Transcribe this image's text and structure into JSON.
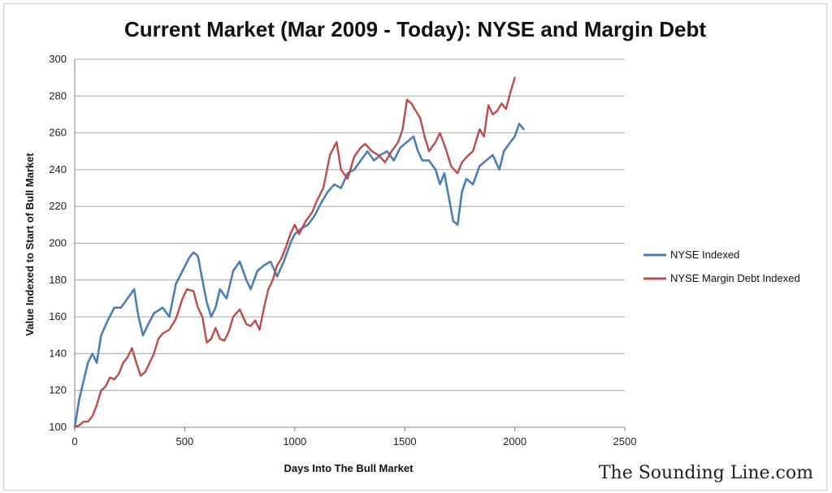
{
  "chart_data": {
    "type": "line",
    "title": "Current Market (Mar 2009 - Today): NYSE and Margin Debt",
    "xlabel": "Days Into The Bull Market",
    "ylabel": "Value Indexed to Start of Bull Market",
    "xlim": [
      0,
      2500
    ],
    "ylim": [
      100,
      300
    ],
    "xticks": [
      0,
      500,
      1000,
      1500,
      2000,
      2500
    ],
    "yticks": [
      100,
      120,
      140,
      160,
      180,
      200,
      220,
      240,
      260,
      280,
      300
    ],
    "grid": "horizontal",
    "legend_position": "right",
    "series": [
      {
        "name": "NYSE Indexed",
        "color": "#4a7ebb",
        "x": [
          0,
          20,
          40,
          60,
          80,
          100,
          120,
          150,
          180,
          210,
          240,
          270,
          290,
          310,
          330,
          360,
          400,
          430,
          460,
          490,
          520,
          540,
          560,
          580,
          600,
          620,
          640,
          660,
          690,
          720,
          750,
          780,
          800,
          830,
          860,
          890,
          920,
          950,
          980,
          1000,
          1030,
          1060,
          1090,
          1120,
          1150,
          1180,
          1210,
          1240,
          1270,
          1300,
          1330,
          1360,
          1390,
          1420,
          1450,
          1480,
          1510,
          1540,
          1560,
          1580,
          1610,
          1640,
          1660,
          1680,
          1700,
          1720,
          1740,
          1760,
          1780,
          1810,
          1840,
          1870,
          1900,
          1930,
          1950,
          1980,
          2000,
          2020,
          2040
        ],
        "values": [
          100,
          115,
          125,
          135,
          140,
          135,
          150,
          158,
          165,
          165,
          170,
          175,
          160,
          150,
          155,
          162,
          165,
          160,
          178,
          185,
          192,
          195,
          193,
          180,
          168,
          160,
          165,
          175,
          170,
          185,
          190,
          180,
          175,
          185,
          188,
          190,
          182,
          190,
          200,
          205,
          208,
          210,
          215,
          222,
          228,
          232,
          230,
          238,
          240,
          245,
          250,
          245,
          248,
          250,
          245,
          252,
          255,
          258,
          250,
          245,
          245,
          240,
          232,
          238,
          225,
          212,
          210,
          228,
          235,
          232,
          242,
          245,
          248,
          240,
          250,
          255,
          258,
          265,
          262
        ]
      },
      {
        "name": "NYSE Margin Debt Indexed",
        "color": "#be4b48",
        "x": [
          0,
          20,
          40,
          60,
          80,
          100,
          120,
          140,
          160,
          180,
          200,
          220,
          240,
          260,
          280,
          300,
          320,
          340,
          360,
          380,
          400,
          430,
          460,
          490,
          510,
          540,
          560,
          580,
          600,
          620,
          640,
          660,
          680,
          700,
          720,
          750,
          780,
          800,
          820,
          840,
          860,
          880,
          900,
          920,
          940,
          960,
          980,
          1000,
          1020,
          1050,
          1080,
          1100,
          1130,
          1160,
          1190,
          1210,
          1240,
          1270,
          1300,
          1320,
          1350,
          1380,
          1410,
          1440,
          1470,
          1490,
          1510,
          1530,
          1550,
          1570,
          1590,
          1610,
          1640,
          1660,
          1690,
          1710,
          1740,
          1760,
          1790,
          1810,
          1840,
          1860,
          1880,
          1900,
          1920,
          1940,
          1960,
          1980,
          2000
        ],
        "values": [
          100,
          101,
          103,
          103,
          106,
          112,
          120,
          122,
          127,
          126,
          129,
          135,
          138,
          143,
          135,
          128,
          130,
          135,
          140,
          148,
          151,
          153,
          159,
          170,
          175,
          174,
          165,
          160,
          146,
          148,
          154,
          148,
          147,
          152,
          160,
          164,
          156,
          155,
          158,
          153,
          165,
          175,
          180,
          188,
          192,
          198,
          205,
          210,
          205,
          212,
          217,
          223,
          230,
          248,
          255,
          240,
          235,
          247,
          252,
          254,
          250,
          248,
          244,
          250,
          255,
          262,
          278,
          276,
          272,
          268,
          258,
          250,
          255,
          260,
          250,
          242,
          238,
          244,
          248,
          250,
          262,
          258,
          275,
          270,
          272,
          276,
          273,
          282,
          290
        ]
      }
    ]
  },
  "watermark": "The Sounding Line.com"
}
